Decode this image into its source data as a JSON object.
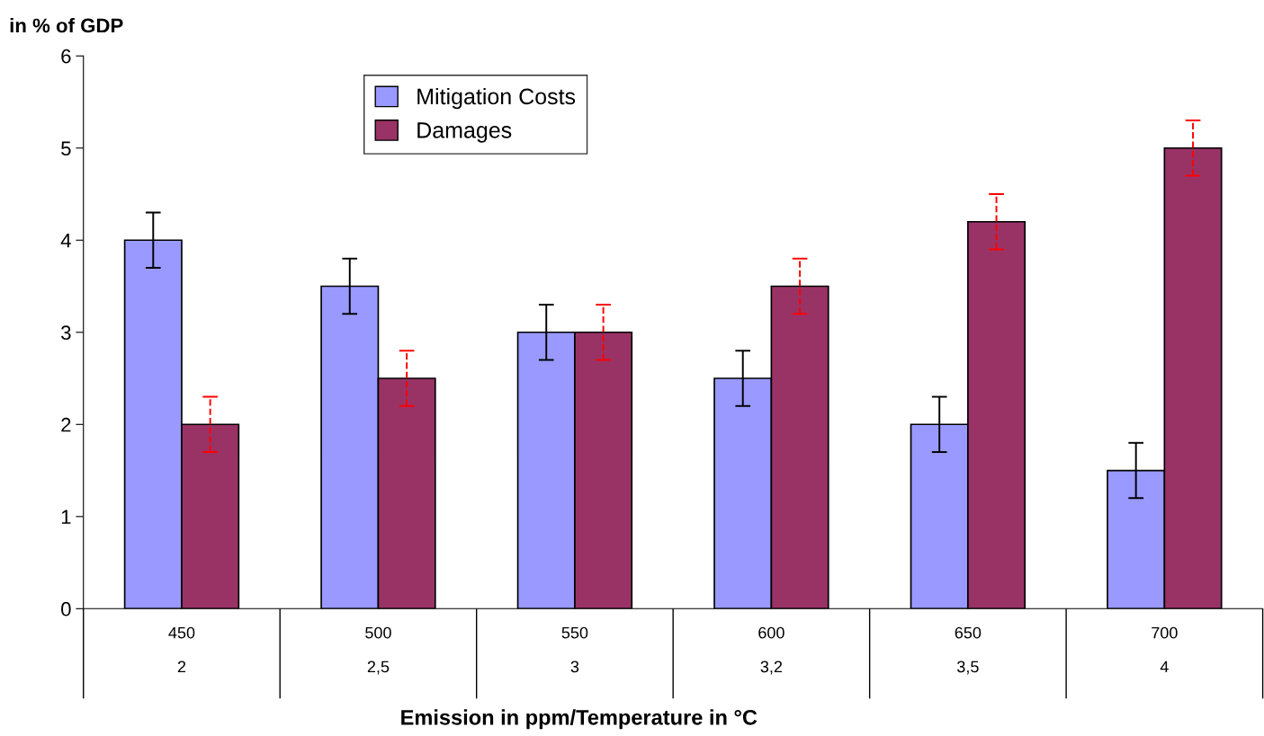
{
  "chart_data": {
    "type": "bar",
    "xlabel": "Emission in ppm/Temperature in °C",
    "ylabel": "in % of GDP",
    "categories": [
      "450\n2",
      "500\n2,5",
      "550\n3",
      "600\n3,2",
      "650\n3,5",
      "700\n4"
    ],
    "series": [
      {
        "name": "Mitigation Costs",
        "color": "#9999ff",
        "values": [
          4,
          3.5,
          3,
          2.5,
          2,
          1.5
        ],
        "errors": [
          0.3,
          0.3,
          0.3,
          0.3,
          0.3,
          0.3
        ]
      },
      {
        "name": "Damages",
        "color": "#993366",
        "values": [
          2,
          2.5,
          3,
          3.5,
          4.2,
          5
        ],
        "errors": [
          0.3,
          0.3,
          0.3,
          0.3,
          0.3,
          0.3
        ]
      }
    ],
    "ylim": [
      0,
      6
    ],
    "yticks": [
      0,
      1,
      2,
      3,
      4,
      5,
      6
    ],
    "grid": false,
    "legend": "top"
  }
}
